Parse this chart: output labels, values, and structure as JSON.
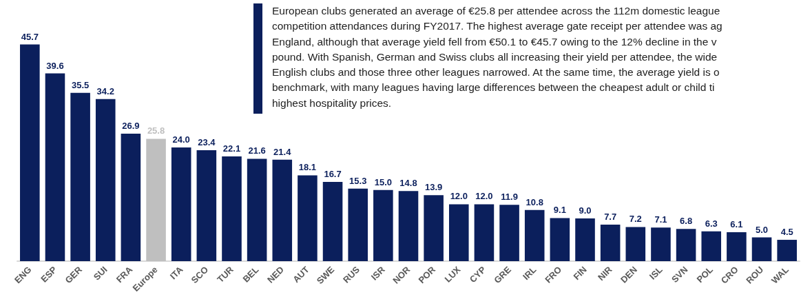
{
  "chart_data": {
    "type": "bar",
    "categories": [
      "ENG",
      "ESP",
      "GER",
      "SUI",
      "FRA",
      "Europe",
      "ITA",
      "SCO",
      "TUR",
      "BEL",
      "NED",
      "AUT",
      "SWE",
      "RUS",
      "ISR",
      "NOR",
      "POR",
      "LUX",
      "CYP",
      "GRE",
      "IRL",
      "FRO",
      "FIN",
      "NIR",
      "DEN",
      "ISL",
      "SVN",
      "POL",
      "CRO",
      "ROU",
      "WAL"
    ],
    "values": [
      45.7,
      39.6,
      35.5,
      34.2,
      26.9,
      25.8,
      24.0,
      23.4,
      22.1,
      21.6,
      21.4,
      18.1,
      16.7,
      15.3,
      15.0,
      14.8,
      13.9,
      12.0,
      12.0,
      11.9,
      10.8,
      9.1,
      9.0,
      7.7,
      7.2,
      7.1,
      6.8,
      6.3,
      6.1,
      5.0,
      4.5
    ],
    "value_labels": [
      "45.7",
      "39.6",
      "35.5",
      "34.2",
      "26.9",
      "25.8",
      "24.0",
      "23.4",
      "22.1",
      "21.6",
      "21.4",
      "18.1",
      "16.7",
      "15.3",
      "15.0",
      "14.8",
      "13.9",
      "12.0",
      "12.0",
      "11.9",
      "10.8",
      "9.1",
      "9.0",
      "7.7",
      "7.2",
      "7.1",
      "6.8",
      "6.3",
      "6.1",
      "5.0",
      "4.5"
    ],
    "colors": [
      "#0b1f5c",
      "#0b1f5c",
      "#0b1f5c",
      "#0b1f5c",
      "#0b1f5c",
      "#bfbfbf",
      "#0b1f5c",
      "#0b1f5c",
      "#0b1f5c",
      "#0b1f5c",
      "#0b1f5c",
      "#0b1f5c",
      "#0b1f5c",
      "#0b1f5c",
      "#0b1f5c",
      "#0b1f5c",
      "#0b1f5c",
      "#0b1f5c",
      "#0b1f5c",
      "#0b1f5c",
      "#0b1f5c",
      "#0b1f5c",
      "#0b1f5c",
      "#0b1f5c",
      "#0b1f5c",
      "#0b1f5c",
      "#0b1f5c",
      "#0b1f5c",
      "#0b1f5c",
      "#0b1f5c",
      "#0b1f5c"
    ],
    "annotations": [
      "European clubs generated an average of €25.8 per attendee across the 112m domestic league\ncompetition attendances during FY2017. The highest average gate receipt per attendee was ag\nEngland, although that average yield fell from €50.1 to €45.7 owing to the 12% decline in the v\npound. With Spanish, German and Swiss clubs all increasing their yield per attendee, the wide\nEnglish clubs and those three other leagues narrowed. At the same time, the average yield is o\nbenchmark, with many leagues having large differences between the cheapest adult or child ti\nhighest hospitality prices."
    ],
    "grid": false
  }
}
